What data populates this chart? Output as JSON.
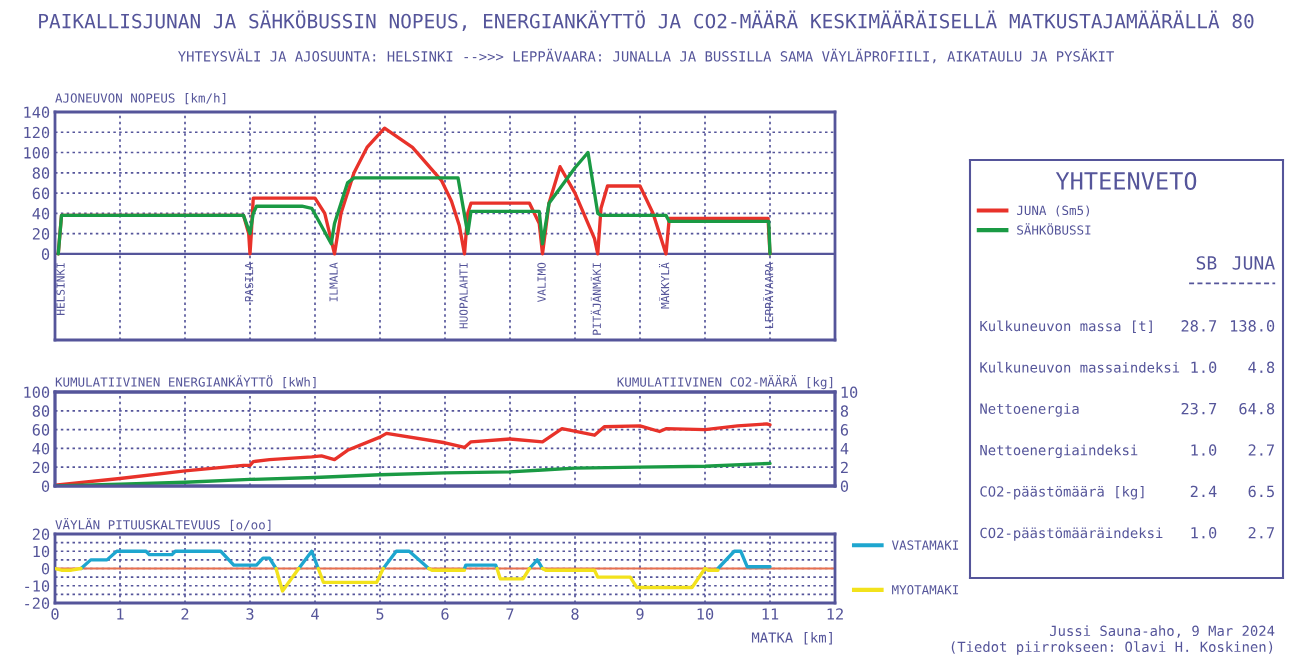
{
  "chart_data": [
    {
      "type": "line",
      "title": "PAIKALLISJUNAN JA SÄHKÖBUSSIN NOPEUS, ENERGIANKÄYTTÖ JA CO2-MÄÄRÄ KESKIMÄÄRÄISELLÄ MATKUSTAJAMÄÄRÄLLÄ 80",
      "subtitle": "YHTEYSVÄLI JA AJOSUUNTA: HELSINKI -->>> LEPPÄVAARA: JUNALLA JA BUSSILLA SAMA VÄYLÄPROFIILI, AIKATAULU JA PYSÄKIT",
      "ylabel": "AJONEUVON NOPEUS [km/h]",
      "xlim": [
        0,
        12
      ],
      "xticks": [
        0,
        1,
        2,
        3,
        4,
        5,
        6,
        7,
        8,
        9,
        10,
        11,
        12
      ],
      "ylim": [
        -85,
        140
      ],
      "yticks": [
        0,
        20,
        40,
        60,
        80,
        100,
        120,
        140
      ],
      "grid": true,
      "tick_labels": "y",
      "legend": "right",
      "ref_lines": [
        {
          "axis": "y",
          "value": 0,
          "color": "#55559a"
        }
      ],
      "annotations": [
        {
          "text": "HELSINKI",
          "x": 0.1,
          "y": 0
        },
        {
          "text": "PASILA",
          "x": 3.0,
          "y": 0
        },
        {
          "text": "ILMALA",
          "x": 4.3,
          "y": 0
        },
        {
          "text": "HUOPALAHTI",
          "x": 6.3,
          "y": 0
        },
        {
          "text": "VALIMO",
          "x": 7.5,
          "y": 0
        },
        {
          "text": "PITÄJÄNMÄKI",
          "x": 8.35,
          "y": 0
        },
        {
          "text": "MÄKKYLÄ",
          "x": 9.4,
          "y": 0
        },
        {
          "text": "LEPPÄVAARA",
          "x": 11.0,
          "y": 0
        }
      ],
      "series": [
        {
          "name": "JUNA (Sm5)",
          "color": "#e8322a",
          "x": [
            0.05,
            0.1,
            2.9,
            2.98,
            3.0,
            3.02,
            3.05,
            4.0,
            4.15,
            4.3,
            4.4,
            4.6,
            4.8,
            5.07,
            5.5,
            5.95,
            6.1,
            6.22,
            6.3,
            6.35,
            6.4,
            7.3,
            7.45,
            7.5,
            7.6,
            7.77,
            8.0,
            8.3,
            8.35,
            8.4,
            8.5,
            9.0,
            9.2,
            9.4,
            9.45,
            10.97,
            11.0
          ],
          "values": [
            0,
            38,
            38,
            20,
            0,
            20,
            55,
            55,
            40,
            0,
            40,
            80,
            105,
            124,
            105,
            72,
            52,
            28,
            0,
            40,
            50,
            50,
            30,
            0,
            50,
            86,
            60,
            15,
            0,
            45,
            67,
            67,
            40,
            0,
            35,
            35,
            0
          ]
        },
        {
          "name": "SÄHKÖBUSSI",
          "color": "#1a9a44",
          "x": [
            0.05,
            0.1,
            2.9,
            3.0,
            3.05,
            3.1,
            3.8,
            3.95,
            4.25,
            4.3,
            4.5,
            4.6,
            6.2,
            6.35,
            6.4,
            7.45,
            7.5,
            7.6,
            8.0,
            8.2,
            8.35,
            8.4,
            9.4,
            9.45,
            10.98,
            11.0
          ],
          "values": [
            0,
            38,
            38,
            20,
            40,
            47,
            47,
            45,
            10,
            30,
            70,
            75,
            75,
            20,
            42,
            42,
            10,
            50,
            85,
            100,
            40,
            38,
            38,
            32,
            32,
            0
          ]
        }
      ]
    },
    {
      "type": "line",
      "ylabel": "KUMULATIIVINEN ENERGIANKÄYTTÖ [kWh]",
      "y2label": "KUMULATIIVINEN CO2-MÄÄRÄ [kg]",
      "xlim": [
        0,
        12
      ],
      "xticks": [
        0,
        1,
        2,
        3,
        4,
        5,
        6,
        7,
        8,
        9,
        10,
        11,
        12
      ],
      "ylim": [
        0,
        100
      ],
      "yticks": [
        0,
        20,
        40,
        60,
        80,
        100
      ],
      "y2lim": [
        0,
        10
      ],
      "y2ticks": [
        0,
        2,
        4,
        6,
        8,
        10
      ],
      "grid": true,
      "tick_labels": "y",
      "series": [
        {
          "color": "#e8322a",
          "x": [
            0,
            1,
            2,
            2.9,
            3.0,
            3.05,
            3.3,
            3.95,
            4.1,
            4.3,
            4.5,
            5.0,
            5.1,
            6.0,
            6.3,
            6.4,
            7.0,
            7.5,
            7.8,
            8.3,
            8.45,
            9.0,
            9.3,
            9.4,
            10.0,
            10.5,
            10.95,
            11.0
          ],
          "values": [
            1,
            8,
            16,
            22,
            22,
            26,
            28,
            31,
            32,
            28,
            38,
            52,
            56,
            46,
            41,
            47,
            50,
            47,
            61,
            54,
            63,
            64,
            58,
            61,
            60,
            64,
            66,
            65
          ]
        },
        {
          "color": "#1a9a44",
          "x": [
            0,
            1,
            2,
            3,
            4,
            5,
            6,
            7,
            7.5,
            8,
            9,
            10,
            11
          ],
          "values": [
            0,
            2,
            4,
            7,
            9,
            12,
            14,
            15,
            17,
            19,
            20,
            21,
            24
          ]
        }
      ]
    },
    {
      "type": "line",
      "ylabel": "VÄYLÄN PITUUSKALTEVUUS [o/oo]",
      "xlabel": "MATKA [km]",
      "xlim": [
        0,
        12
      ],
      "xticks": [
        0,
        1,
        2,
        3,
        4,
        5,
        6,
        7,
        8,
        9,
        10,
        11,
        12
      ],
      "ylim": [
        -20,
        20
      ],
      "yticks": [
        -20,
        {
          "value": -15,
          "label": null
        },
        -10,
        {
          "value": -5,
          "label": null
        },
        0,
        {
          "value": 5,
          "label": null
        },
        10,
        {
          "value": 15,
          "label": null
        },
        20
      ],
      "grid": true,
      "legend": "right",
      "ref_lines": [
        {
          "axis": "y",
          "value": 0,
          "color": "#e8704f"
        }
      ],
      "series": [
        {
          "name": "VASTAMAKI",
          "color": "#1ea6cf",
          "x": [
            0.4,
            0.55,
            0.8,
            0.95,
            1.4,
            1.45,
            1.8,
            1.85,
            2.55,
            2.75,
            3.1,
            3.2,
            3.3,
            3.4,
            null,
            3.75,
            3.95,
            4.05,
            null,
            5.05,
            5.25,
            5.45,
            5.75,
            null,
            6.3,
            6.32,
            6.78,
            6.8,
            null,
            7.3,
            7.42,
            7.5,
            null,
            10.2,
            10.45,
            10.55,
            10.65,
            11.0
          ],
          "values": [
            0,
            5,
            5,
            10,
            10,
            8,
            8,
            10,
            10,
            2,
            2,
            6,
            6,
            0,
            null,
            0,
            10,
            0,
            null,
            0,
            10,
            10,
            0,
            null,
            0,
            2,
            2,
            0,
            null,
            0,
            5,
            0,
            null,
            0,
            10,
            10,
            1,
            1
          ]
        },
        {
          "name": "MYOTAMAKI",
          "color": "#f2e21c",
          "x": [
            0,
            0.1,
            0.25,
            0.4,
            null,
            3.4,
            3.5,
            3.75,
            null,
            4.05,
            4.13,
            4.95,
            5.05,
            null,
            5.75,
            5.8,
            6.3,
            null,
            6.8,
            6.85,
            7.2,
            7.3,
            null,
            7.5,
            7.55,
            8.3,
            8.35,
            8.85,
            8.95,
            9.8,
            10.0,
            10.05,
            10.2
          ],
          "values": [
            0,
            -1,
            -1,
            0,
            null,
            0,
            -13,
            0,
            null,
            0,
            -8,
            -8,
            0,
            null,
            0,
            -1,
            -1,
            null,
            0,
            -6,
            -6,
            0,
            null,
            0,
            -1,
            -1,
            -5,
            -5,
            -11,
            -11,
            0,
            -1,
            -1
          ]
        }
      ]
    },
    {
      "type": "other",
      "title": "YHTEENVETO",
      "categories": [
        "Kulkuneuvon massa [t]",
        "Kulkuneuvon massaindeksi",
        "Nettoenergia",
        "Nettoenergiaindeksi",
        "CO2-päästömäärä [kg]",
        "CO2-päästömääräindeksi"
      ],
      "series": [
        {
          "name": "SB",
          "values": [
            28.7,
            1,
            23.7,
            1,
            2.4,
            1
          ],
          "value_labels": [
            "28.7",
            "1.0",
            "23.7",
            "1.0",
            "2.4",
            "1.0"
          ]
        },
        {
          "name": "JUNA",
          "values": [
            138,
            4.8,
            64.8,
            2.7,
            6.5,
            2.7
          ],
          "value_labels": [
            "138.0",
            "4.8",
            "64.8",
            "2.7",
            "6.5",
            "2.7"
          ]
        }
      ],
      "annotations": [
        "Jussi Sauna-aho, 9 Mar 2024",
        "(Tiedot piirrokseen: Olavi H. Koskinen)"
      ]
    }
  ]
}
